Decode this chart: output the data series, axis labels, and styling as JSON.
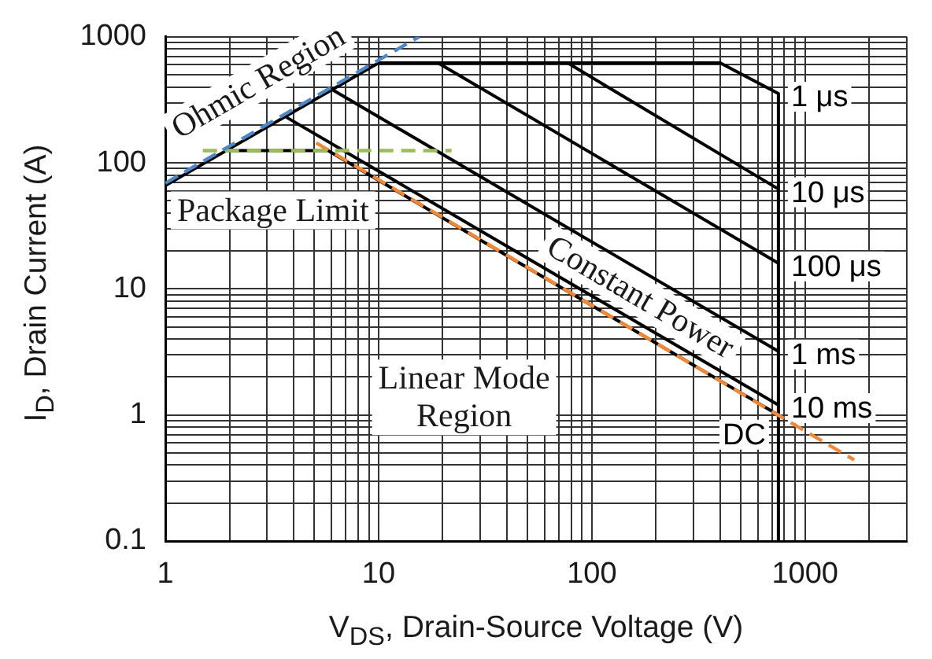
{
  "chart_data": {
    "type": "line",
    "xlabel": "V$_{DS}$, Drain-Source Voltage (V)",
    "ylabel": "I$_{D}$, Drain Current (A)",
    "log": "xy",
    "grid": true,
    "legend": false,
    "marker": "none",
    "xlim": [
      1,
      3000
    ],
    "xticks": [
      1,
      {
        "value": 2,
        "label": null
      },
      {
        "value": 3,
        "label": null
      },
      {
        "value": 4,
        "label": null
      },
      {
        "value": 5,
        "label": null
      },
      {
        "value": 6,
        "label": null
      },
      {
        "value": 7,
        "label": null
      },
      {
        "value": 8,
        "label": null
      },
      {
        "value": 9,
        "label": null
      },
      10,
      {
        "value": 20,
        "label": null
      },
      {
        "value": 30,
        "label": null
      },
      {
        "value": 40,
        "label": null
      },
      {
        "value": 50,
        "label": null
      },
      {
        "value": 60,
        "label": null
      },
      {
        "value": 70,
        "label": null
      },
      {
        "value": 80,
        "label": null
      },
      {
        "value": 90,
        "label": null
      },
      100,
      {
        "value": 200,
        "label": null
      },
      {
        "value": 300,
        "label": null
      },
      {
        "value": 400,
        "label": null
      },
      {
        "value": 500,
        "label": null
      },
      {
        "value": 600,
        "label": null
      },
      {
        "value": 700,
        "label": null
      },
      {
        "value": 800,
        "label": null
      },
      {
        "value": 900,
        "label": null
      },
      1000,
      {
        "value": 2000,
        "label": null
      },
      {
        "value": 3000,
        "label": null
      }
    ],
    "ylim": [
      0.1,
      1000
    ],
    "yticks": [
      0.1,
      {
        "value": 0.2,
        "label": null
      },
      {
        "value": 0.3,
        "label": null
      },
      {
        "value": 0.4,
        "label": null
      },
      {
        "value": 0.5,
        "label": null
      },
      {
        "value": 0.6,
        "label": null
      },
      {
        "value": 0.7,
        "label": null
      },
      {
        "value": 0.8,
        "label": null
      },
      {
        "value": 0.9,
        "label": null
      },
      1,
      {
        "value": 2,
        "label": null
      },
      {
        "value": 3,
        "label": null
      },
      {
        "value": 4,
        "label": null
      },
      {
        "value": 5,
        "label": null
      },
      {
        "value": 6,
        "label": null
      },
      {
        "value": 7,
        "label": null
      },
      {
        "value": 8,
        "label": null
      },
      {
        "value": 9,
        "label": null
      },
      10,
      {
        "value": 20,
        "label": null
      },
      {
        "value": 30,
        "label": null
      },
      {
        "value": 40,
        "label": null
      },
      {
        "value": 50,
        "label": null
      },
      {
        "value": 60,
        "label": null
      },
      {
        "value": 70,
        "label": null
      },
      {
        "value": 80,
        "label": null
      },
      {
        "value": 90,
        "label": null
      },
      100,
      {
        "value": 200,
        "label": null
      },
      {
        "value": 300,
        "label": null
      },
      {
        "value": 400,
        "label": null
      },
      {
        "value": 500,
        "label": null
      },
      {
        "value": 600,
        "label": null
      },
      {
        "value": 700,
        "label": null
      },
      {
        "value": 800,
        "label": null
      },
      {
        "value": 900,
        "label": null
      },
      1000
    ],
    "series": [
      {
        "name": "1 μs",
        "color": "#000000",
        "x": [
          1,
          10,
          400,
          750,
          750
        ],
        "values": [
          66,
          620,
          620,
          355,
          0.1
        ]
      },
      {
        "name": "10 μs",
        "color": "#000000",
        "x": [
          77,
          750
        ],
        "values": [
          620,
          62
        ]
      },
      {
        "name": "100 μs",
        "color": "#000000",
        "x": [
          19,
          750
        ],
        "values": [
          620,
          16
        ]
      },
      {
        "name": "1 ms",
        "color": "#000000",
        "x": [
          6,
          750
        ],
        "values": [
          385,
          3.2
        ]
      },
      {
        "name": "10 ms",
        "color": "#000000",
        "x": [
          3.7,
          750
        ],
        "values": [
          230,
          1.2
        ]
      },
      {
        "name": "DC",
        "color": "#000000",
        "x": [
          1.9,
          5.8,
          750
        ],
        "values": [
          125,
          125,
          1
        ]
      },
      {
        "color": "#4f86c6",
        "x": [
          1,
          15.5
        ],
        "values": [
          69,
          1000
        ],
        "line_style": "dashed"
      },
      {
        "color": "#9bbb59",
        "x": [
          1.5,
          22
        ],
        "values": [
          125,
          125
        ],
        "line_style": "dashed"
      },
      {
        "color": "#f0883a",
        "x": [
          5.1,
          1700
        ],
        "values": [
          144,
          0.44
        ],
        "line_style": "dashed"
      }
    ],
    "annotations": [
      {
        "text": "Ohmic Region",
        "x": 3.4,
        "y": 230
      },
      {
        "text": "Package Limit",
        "x": 3.2,
        "y": 125
      },
      {
        "text": "Constant Power",
        "x": 140,
        "y": 5
      },
      "Linear Mode Region"
    ]
  }
}
